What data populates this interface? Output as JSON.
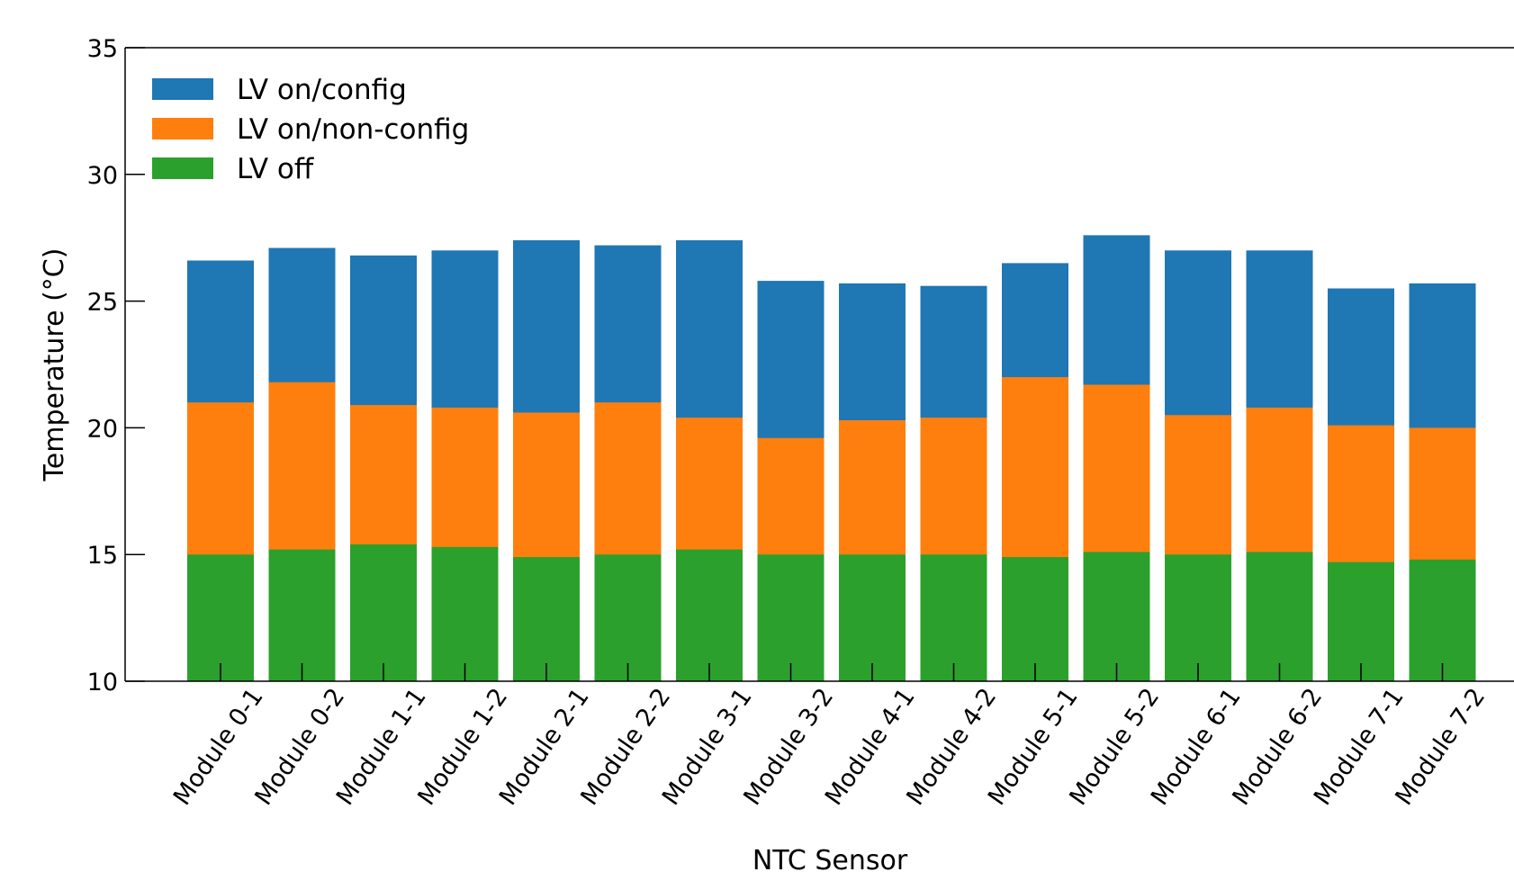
{
  "chart_data": {
    "type": "bar",
    "stacked": false,
    "note_overlap": "bars drawn overlapping from baseline; taller series behind",
    "title": "",
    "xlabel": "NTC Sensor",
    "ylabel": "Temperature (°C)",
    "ylim": [
      10,
      35
    ],
    "yticks": [
      10,
      15,
      20,
      25,
      30,
      35
    ],
    "grid": false,
    "legend_placement": "top-left",
    "categories": [
      "Module 0-1",
      "Module 0-2",
      "Module 1-1",
      "Module 1-2",
      "Module 2-1",
      "Module 2-2",
      "Module 3-1",
      "Module 3-2",
      "Module 4-1",
      "Module 4-2",
      "Module 5-1",
      "Module 5-2",
      "Module 6-1",
      "Module 6-2",
      "Module 7-1",
      "Module 7-2"
    ],
    "series": [
      {
        "name": "LV on/config",
        "color": "#1f77b4",
        "values": [
          26.6,
          27.1,
          26.8,
          27.0,
          27.4,
          27.2,
          27.4,
          25.8,
          25.7,
          25.6,
          26.5,
          27.6,
          27.0,
          27.0,
          25.5,
          25.7
        ]
      },
      {
        "name": "LV on/non-config",
        "color": "#ff7f0e",
        "values": [
          21.0,
          21.8,
          20.9,
          20.8,
          20.6,
          21.0,
          20.4,
          19.6,
          20.3,
          20.4,
          22.0,
          21.7,
          20.5,
          20.8,
          20.1,
          20.0
        ]
      },
      {
        "name": "LV off",
        "color": "#2ca02c",
        "values": [
          15.0,
          15.2,
          15.4,
          15.3,
          14.9,
          15.0,
          15.2,
          15.0,
          15.0,
          15.0,
          14.9,
          15.1,
          15.0,
          15.1,
          14.7,
          14.8
        ]
      }
    ]
  }
}
